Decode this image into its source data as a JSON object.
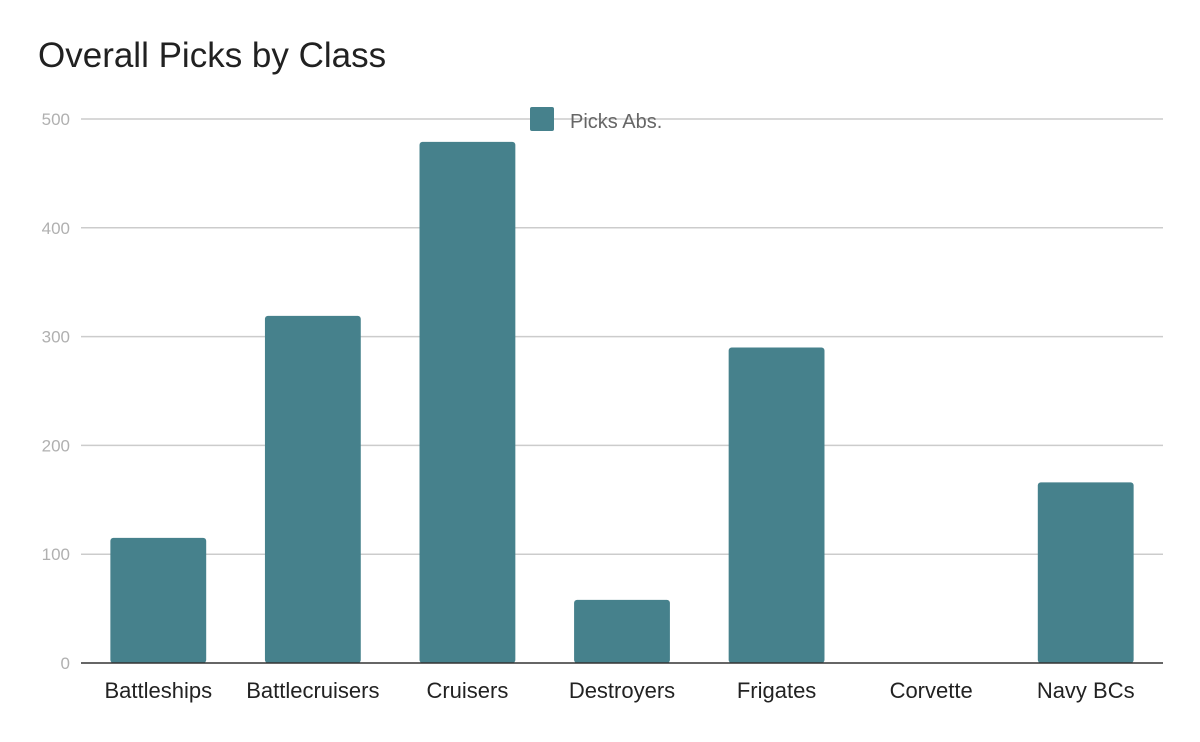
{
  "chart_data": {
    "type": "bar",
    "title": "Overall Picks by Class",
    "categories": [
      "Battleships",
      "Battlecruisers",
      "Cruisers",
      "Destroyers",
      "Frigates",
      "Corvette",
      "Navy BCs"
    ],
    "series": [
      {
        "name": "Picks Abs.",
        "color": "#46818c",
        "values": [
          115,
          319,
          479,
          58,
          290,
          0,
          166
        ]
      }
    ],
    "ylim": [
      0,
      500
    ],
    "yticks": [
      "0",
      "100",
      "200",
      "300",
      "400",
      "500"
    ],
    "xlabel": "",
    "ylabel": "",
    "grid": true,
    "legend": "top-center"
  }
}
